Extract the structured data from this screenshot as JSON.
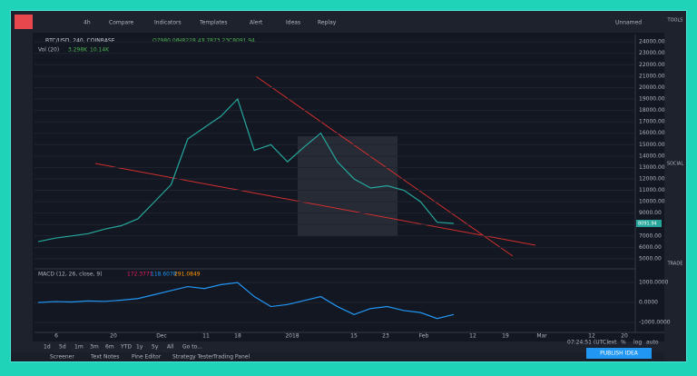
{
  "ui": {
    "toolbar": [
      "4h",
      "Compare",
      "Indicators",
      "Templates",
      "Alert",
      "Ideas",
      "Replay",
      "Unnamed"
    ],
    "symbol": "BTC/USD, 240, COINBASE",
    "ohlc": [
      "O7980.06",
      "H8228.41",
      "L7873.23",
      "C8091.94"
    ],
    "volume": {
      "label": "Vol (20)",
      "values": [
        "3.298K",
        "10.14K"
      ]
    },
    "macd_legend": {
      "label": "MACD (12, 26, close, 9)",
      "values": [
        "172.3771",
        "118.6078",
        "291.0849"
      ]
    },
    "price_badge": "8091.94",
    "time_labels": [
      "6",
      "20",
      "Dec",
      "11",
      "18",
      "2018",
      "15",
      "23",
      "Feb",
      "12",
      "19",
      "Mar",
      "12",
      "20"
    ],
    "ranges": [
      "1d",
      "5d",
      "1m",
      "3m",
      "6m",
      "YTD",
      "1y",
      "5y",
      "All",
      "Go to..."
    ],
    "clock": "07:24:51 (UTC)",
    "axis_opts": [
      "ext",
      "%",
      "log",
      "auto"
    ],
    "tabs": [
      "Screener",
      "Text Notes",
      "Pine Editor",
      "Strategy Tester",
      "Trading Panel"
    ],
    "publish": "PUBLISH IDEA",
    "sidebar": [
      "TOOLS",
      "SOCIAL",
      "TRADE"
    ]
  },
  "chart_data": [
    {
      "type": "line",
      "color": "#26a69a",
      "ylim": [
        4200,
        24650
      ],
      "values": [
        6500,
        6800,
        7000,
        7200,
        7600,
        7900,
        8500,
        10000,
        11500,
        15500,
        16500,
        17500,
        19000,
        14500,
        15000,
        13500,
        14800,
        16000,
        13500,
        12000,
        11200,
        11400,
        11000,
        10000,
        8200,
        8100
      ],
      "yticks": [
        {
          "value": 24000,
          "label": "24000.00"
        },
        {
          "value": 23000,
          "label": "23000.00"
        },
        {
          "value": 22000,
          "label": "22000.00"
        },
        {
          "value": 21000,
          "label": "21000.00"
        },
        {
          "value": 20000,
          "label": "20000.00"
        },
        {
          "value": 19000,
          "label": "19000.00"
        },
        {
          "value": 18000,
          "label": "18000.00"
        },
        {
          "value": 17000,
          "label": "17000.00"
        },
        {
          "value": 16000,
          "label": "16000.00"
        },
        {
          "value": 15000,
          "label": "15000.00"
        },
        {
          "value": 14000,
          "label": "14000.00"
        },
        {
          "value": 13000,
          "label": "13000.00"
        },
        {
          "value": 12000,
          "label": "12000.00"
        },
        {
          "value": 11000,
          "label": "11000.00"
        },
        {
          "value": 10000,
          "label": "10000.00"
        },
        {
          "value": 9000,
          "label": "9000.00"
        },
        {
          "value": 8000,
          "label": "8000.00"
        },
        {
          "value": 7000,
          "label": "7000.00"
        },
        {
          "value": 6000,
          "label": "6000.00"
        },
        {
          "value": 5000,
          "label": "5000.00"
        }
      ]
    },
    {
      "type": "line",
      "color": "#2196f3",
      "ylim": [
        -1450,
        1600
      ],
      "values": [
        0,
        50,
        30,
        80,
        60,
        120,
        200,
        400,
        600,
        800,
        700,
        900,
        1000,
        300,
        -200,
        -100,
        100,
        300,
        -200,
        -600,
        -300,
        -200,
        -400,
        -500,
        -800,
        -600
      ],
      "yticks": [
        {
          "value": 1000,
          "label": "1000.0000"
        },
        {
          "value": 0,
          "label": "0.0000"
        },
        {
          "value": -1000,
          "label": "-1000.0000"
        }
      ]
    }
  ]
}
